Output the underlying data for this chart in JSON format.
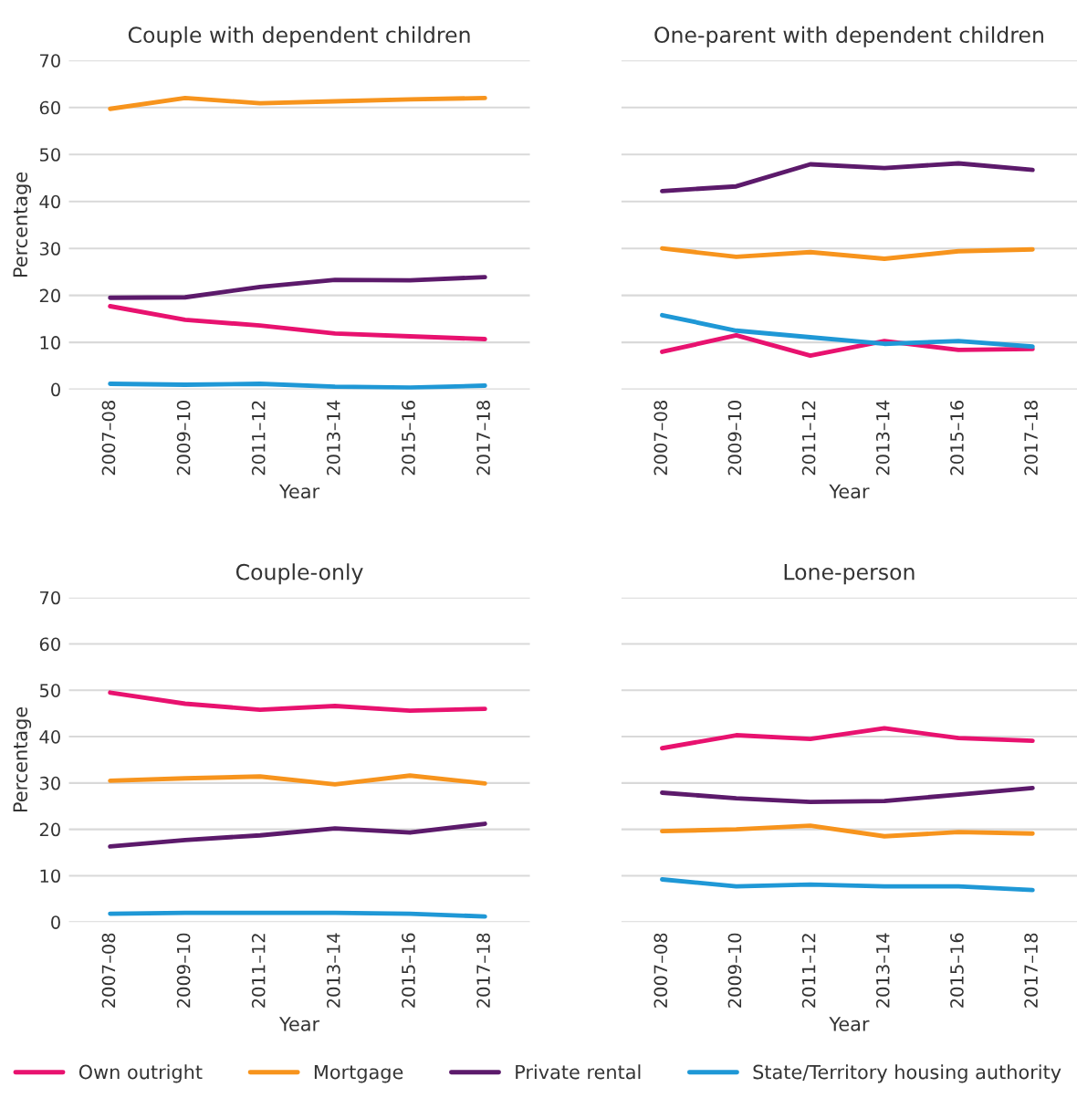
{
  "chart_data": [
    {
      "type": "line",
      "title": "Couple with dependent children",
      "xlabel": "Year",
      "ylabel": "Percentage",
      "categories": [
        "2007–08",
        "2009–10",
        "2011–12",
        "2013–14",
        "2015–16",
        "2017–18"
      ],
      "ylim": [
        0,
        70
      ],
      "yticks": [
        0,
        10,
        20,
        30,
        40,
        50,
        60,
        70
      ],
      "grid": "y",
      "legend": "bottom",
      "series": [
        {
          "name": "Own outright",
          "color": "#e8126f",
          "values": [
            17.7,
            14.8,
            13.6,
            11.9,
            11.3,
            10.7
          ]
        },
        {
          "name": "Mortgage",
          "color": "#f7941d",
          "values": [
            59.7,
            62.0,
            60.9,
            61.3,
            61.7,
            62.0
          ]
        },
        {
          "name": "Private rental",
          "color": "#5c1a6b",
          "values": [
            19.5,
            19.6,
            21.8,
            23.3,
            23.2,
            23.9
          ]
        },
        {
          "name": "State/Territory housing authority",
          "color": "#1f98d6",
          "values": [
            1.2,
            1.0,
            1.2,
            0.6,
            0.4,
            0.8
          ]
        }
      ]
    },
    {
      "type": "line",
      "title": "One-parent with dependent children",
      "xlabel": "Year",
      "categories": [
        "2007–08",
        "2009–10",
        "2011–12",
        "2013–14",
        "2015–16",
        "2017–18"
      ],
      "ylim": [
        0,
        70
      ],
      "yticks": [
        0,
        10,
        20,
        30,
        40,
        50,
        60,
        70
      ],
      "grid": "y",
      "tick_labels": "x",
      "series": [
        {
          "color": "#e8126f",
          "values": [
            8.0,
            11.5,
            7.2,
            10.3,
            8.4,
            8.6
          ]
        },
        {
          "color": "#f7941d",
          "values": [
            30.0,
            28.2,
            29.2,
            27.8,
            29.4,
            29.8
          ]
        },
        {
          "color": "#5c1a6b",
          "values": [
            42.2,
            43.2,
            47.9,
            47.1,
            48.1,
            46.7
          ]
        },
        {
          "color": "#1f98d6",
          "values": [
            15.8,
            12.5,
            11.1,
            9.7,
            10.3,
            9.1
          ]
        }
      ]
    },
    {
      "type": "line",
      "title": "Couple-only",
      "xlabel": "Year",
      "ylabel": "Percentage",
      "categories": [
        "2007–08",
        "2009–10",
        "2011–12",
        "2013–14",
        "2015–16",
        "2017–18"
      ],
      "ylim": [
        0,
        70
      ],
      "yticks": [
        0,
        10,
        20,
        30,
        40,
        50,
        60,
        70
      ],
      "grid": "y",
      "series": [
        {
          "color": "#e8126f",
          "values": [
            49.5,
            47.1,
            45.8,
            46.6,
            45.6,
            46.0
          ]
        },
        {
          "color": "#f7941d",
          "values": [
            30.5,
            31.0,
            31.4,
            29.7,
            31.6,
            29.9
          ]
        },
        {
          "color": "#5c1a6b",
          "values": [
            16.3,
            17.7,
            18.7,
            20.2,
            19.3,
            21.2
          ]
        },
        {
          "color": "#1f98d6",
          "values": [
            1.8,
            2.0,
            2.0,
            2.0,
            1.8,
            1.2
          ]
        }
      ]
    },
    {
      "type": "line",
      "title": "Lone-person",
      "xlabel": "Year",
      "categories": [
        "2007–08",
        "2009–10",
        "2011–12",
        "2013–14",
        "2015–16",
        "2017–18"
      ],
      "ylim": [
        0,
        70
      ],
      "yticks": [
        0,
        10,
        20,
        30,
        40,
        50,
        60,
        70
      ],
      "grid": "y",
      "tick_labels": "x",
      "series": [
        {
          "color": "#e8126f",
          "values": [
            37.5,
            40.3,
            39.5,
            41.8,
            39.7,
            39.1
          ]
        },
        {
          "color": "#f7941d",
          "values": [
            19.6,
            20.0,
            20.8,
            18.5,
            19.4,
            19.1
          ]
        },
        {
          "color": "#5c1a6b",
          "values": [
            27.9,
            26.7,
            25.9,
            26.1,
            27.5,
            28.9
          ]
        },
        {
          "color": "#1f98d6",
          "values": [
            9.2,
            7.7,
            8.1,
            7.7,
            7.7,
            6.9
          ]
        }
      ]
    }
  ]
}
